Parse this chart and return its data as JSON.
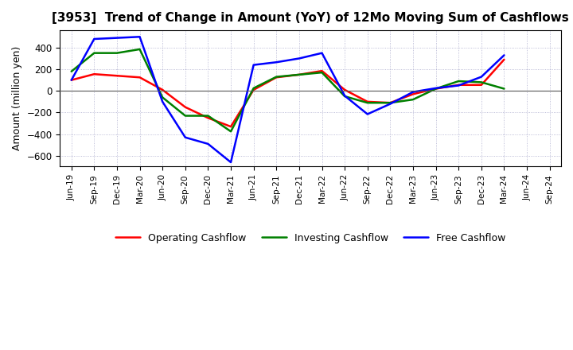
{
  "title": "[3953]  Trend of Change in Amount (YoY) of 12Mo Moving Sum of Cashflows",
  "ylabel": "Amount (million yen)",
  "x_labels": [
    "Jun-19",
    "Sep-19",
    "Dec-19",
    "Mar-20",
    "Jun-20",
    "Sep-20",
    "Dec-20",
    "Mar-21",
    "Jun-21",
    "Sep-21",
    "Dec-21",
    "Mar-22",
    "Jun-22",
    "Sep-22",
    "Dec-22",
    "Mar-23",
    "Jun-23",
    "Sep-23",
    "Dec-23",
    "Mar-24",
    "Jun-24",
    "Sep-24"
  ],
  "operating": [
    100,
    155,
    140,
    125,
    10,
    -150,
    -250,
    -330,
    10,
    125,
    150,
    185,
    10,
    -100,
    -110,
    -30,
    20,
    55,
    55,
    290,
    null,
    null
  ],
  "investing": [
    180,
    350,
    350,
    385,
    -60,
    -230,
    -230,
    -375,
    25,
    130,
    150,
    170,
    -50,
    -110,
    -110,
    -80,
    20,
    90,
    80,
    20,
    null,
    null
  ],
  "free": [
    100,
    480,
    490,
    500,
    -100,
    -430,
    -490,
    -660,
    240,
    265,
    300,
    350,
    -45,
    -215,
    -120,
    -10,
    25,
    50,
    130,
    330,
    null,
    null
  ],
  "ylim": [
    -700,
    560
  ],
  "yticks": [
    -600,
    -400,
    -200,
    0,
    200,
    400
  ],
  "operating_color": "#ff0000",
  "investing_color": "#008000",
  "free_color": "#0000ff",
  "bg_color": "#ffffff",
  "grid_color": "#aaaacc",
  "legend_labels": [
    "Operating Cashflow",
    "Investing Cashflow",
    "Free Cashflow"
  ]
}
